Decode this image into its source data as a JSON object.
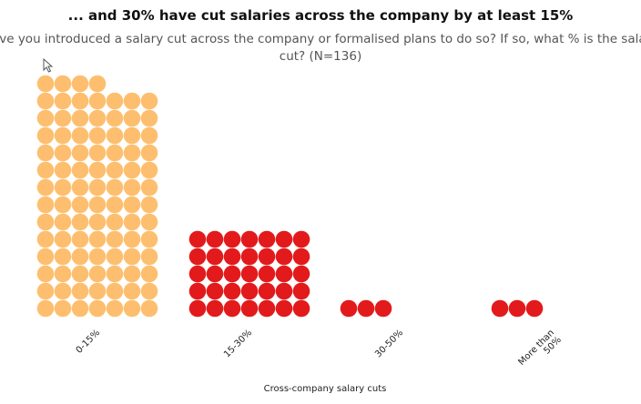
{
  "title": "... and 30% have cut salaries across the company by at least 15%",
  "subtitle": "Have you introduced a salary cut across the company or formalised plans to do so?  If so, what % is the salary cut? (N=136)",
  "icons": {
    "cursor": "mouse-pointer-icon"
  },
  "colors": {
    "low": "#FDBF6F",
    "high": "#E31A1C"
  },
  "chart_data": {
    "type": "waffle",
    "units": "respondents (one dot per respondent)",
    "xlabel": "Cross-company salary cuts",
    "categories": [
      "0-15%",
      "15-30%",
      "30-50%",
      "More than 50%"
    ],
    "values": [
      95,
      35,
      3,
      3
    ],
    "colors": [
      "#FDBF6F",
      "#E31A1C",
      "#E31A1C",
      "#E31A1C"
    ],
    "dots_per_row": 7
  }
}
